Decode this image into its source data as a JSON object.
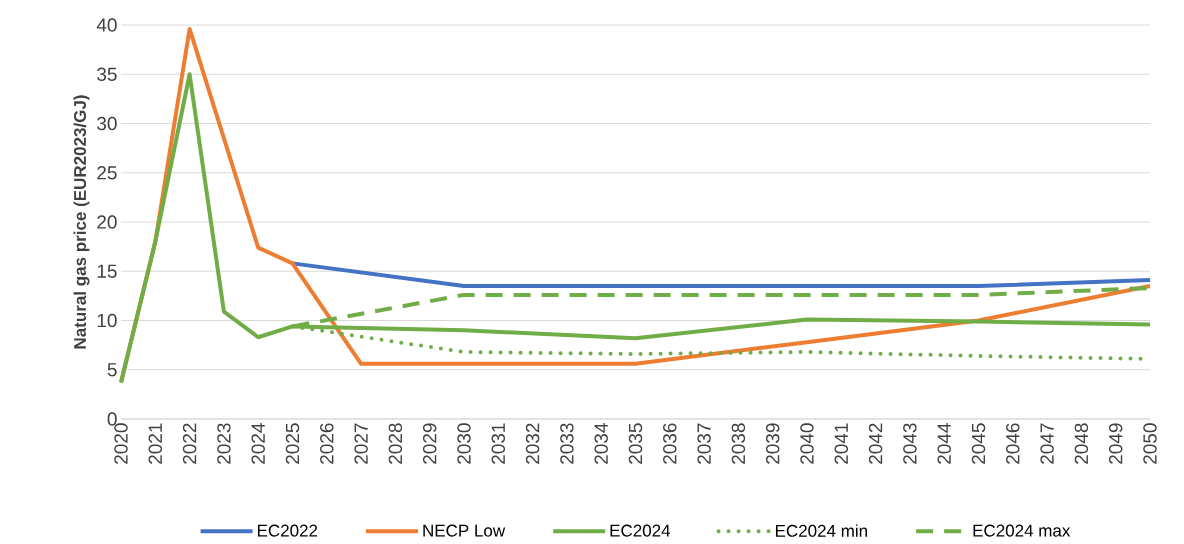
{
  "chart_data": {
    "type": "line",
    "ylabel": "Natural gas price (EUR2023/GJ)",
    "xlim": [
      2020,
      2050
    ],
    "xticks": [
      2020,
      2021,
      2022,
      2023,
      2024,
      2025,
      2026,
      2027,
      2028,
      2029,
      2030,
      2031,
      2032,
      2033,
      2034,
      2035,
      2036,
      2037,
      2038,
      2039,
      2040,
      2041,
      2042,
      2043,
      2044,
      2045,
      2046,
      2047,
      2048,
      2049,
      2050
    ],
    "ylim": [
      0,
      40
    ],
    "yticks": [
      0,
      5,
      10,
      15,
      20,
      25,
      30,
      35,
      40
    ],
    "grid": "y",
    "legend": "bottom",
    "marker": "none",
    "series": [
      {
        "name": "EC2022",
        "color": "#4472c4",
        "line_style": "solid",
        "x": [
          2025,
          2030,
          2035,
          2040,
          2045,
          2050
        ],
        "values": [
          15.8,
          13.5,
          13.5,
          13.5,
          13.5,
          14.1
        ]
      },
      {
        "name": "NECP Low",
        "color": "#ed7d31",
        "line_style": "solid",
        "x": [
          2020,
          2021,
          2022,
          2023,
          2024,
          2025,
          2027,
          2030,
          2035,
          2040,
          2045,
          2050
        ],
        "values": [
          3.7,
          18,
          39.6,
          28.5,
          17.4,
          15.8,
          5.6,
          5.6,
          5.6,
          7.8,
          10.0,
          13.5
        ]
      },
      {
        "name": "EC2024",
        "color": "#70ad47",
        "line_style": "solid",
        "x": [
          2020,
          2021,
          2022,
          2023,
          2024,
          2025,
          2030,
          2035,
          2040,
          2045,
          2050
        ],
        "values": [
          3.7,
          18,
          35,
          10.9,
          8.3,
          9.4,
          9.0,
          8.2,
          10.1,
          9.9,
          9.6
        ]
      },
      {
        "name": "EC2024 min",
        "color": "#70ad47",
        "line_style": "dotted",
        "x": [
          2025,
          2030,
          2035,
          2040,
          2045,
          2050
        ],
        "values": [
          9.4,
          6.8,
          6.6,
          6.8,
          6.4,
          6.1
        ]
      },
      {
        "name": "EC2024 max",
        "color": "#70ad47",
        "line_style": "dashed",
        "x": [
          2025,
          2030,
          2035,
          2040,
          2045,
          2050
        ],
        "values": [
          9.4,
          12.6,
          12.6,
          12.6,
          12.6,
          13.3
        ]
      }
    ]
  }
}
